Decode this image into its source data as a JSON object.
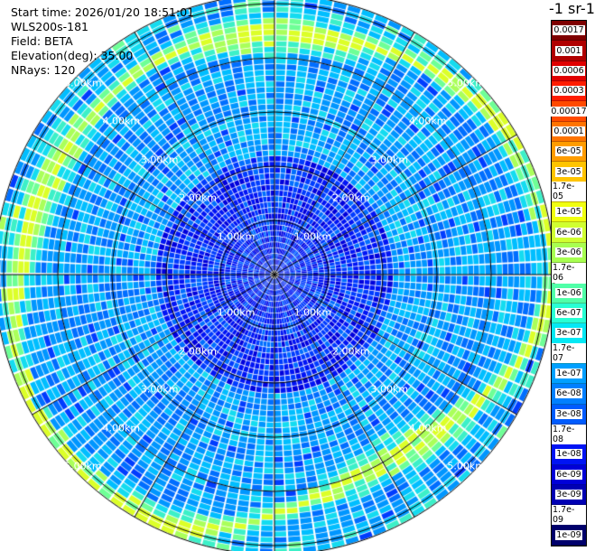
{
  "header": {
    "start_time": "Start time: 2026/01/20 18:51:01",
    "instrument": "WLS200s-181",
    "field": "Field: BETA",
    "elevation": "Elevation(deg): 35.00",
    "nrays": "NRays: 120"
  },
  "colorbar": {
    "title": "-1 sr-1",
    "labels": [
      "0.0017",
      "0.001",
      "0.0006",
      "0.0003",
      "0.00017",
      "0.0001",
      "6e-05",
      "3e-05",
      "1.7e-05",
      "1e-05",
      "6e-06",
      "3e-06",
      "1.7e-06",
      "1e-06",
      "6e-07",
      "3e-07",
      "1.7e-07",
      "1e-07",
      "6e-08",
      "3e-08",
      "1.7e-08",
      "1e-08",
      "6e-09",
      "3e-09",
      "1.7e-09",
      "1e-09"
    ],
    "colors": [
      "#7f0000",
      "#b00000",
      "#e00000",
      "#ff1c00",
      "#ff4a00",
      "#ff7400",
      "#ff9c00",
      "#ffc400",
      "#ffe600",
      "#f0ff10",
      "#d0ff30",
      "#a8ff50",
      "#7cff7a",
      "#50ffa8",
      "#28ffd4",
      "#04e8f4",
      "#00c4ff",
      "#00a0ff",
      "#0080ff",
      "#005cff",
      "#0038ff",
      "#0014f4",
      "#0000d8",
      "#0000b4",
      "#000090",
      "#00006c"
    ]
  },
  "range_labels": [
    "1.00km",
    "2.00km",
    "3.00km",
    "4.00km",
    "5.00km"
  ],
  "chart_data": {
    "type": "heatmap",
    "projection": "polar",
    "field": "BETA",
    "elevation_deg": 35.0,
    "n_rays": 120,
    "range_rings_km": [
      1,
      2,
      3,
      4,
      5
    ],
    "max_range_km": 5.7,
    "scale": "log",
    "vmin": 1e-09,
    "vmax": 0.0017,
    "description_values": {
      "background_level": 1e-08,
      "aerosol_ring_level": 1.7e-06,
      "aerosol_ring_range_km": [
        4.2,
        5.2
      ]
    }
  }
}
